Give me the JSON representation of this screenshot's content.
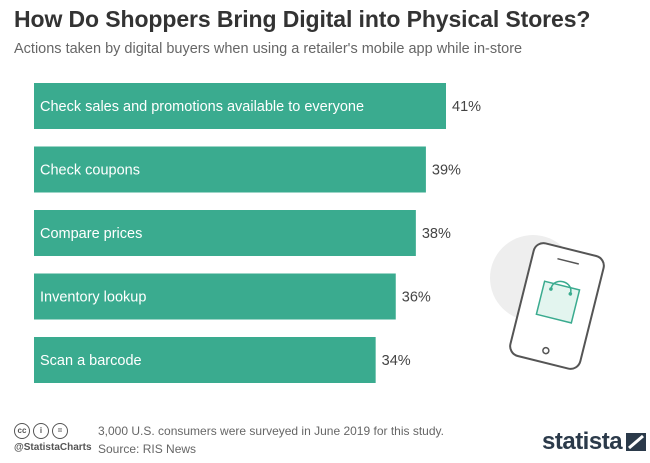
{
  "header": {
    "title": "How Do Shoppers Bring Digital into Physical Stores?",
    "subtitle": "Actions taken by digital buyers when using a retailer's mobile app while in-store"
  },
  "chart_data": {
    "type": "bar",
    "orientation": "horizontal",
    "categories": [
      "Check sales and promotions available to everyone",
      "Check coupons",
      "Compare prices",
      "Inventory lookup",
      "Scan a barcode"
    ],
    "values": [
      41,
      39,
      38,
      36,
      34
    ],
    "value_labels": [
      "41%",
      "39%",
      "38%",
      "36%",
      "34%"
    ],
    "unit": "%",
    "xlim": [
      0,
      41
    ],
    "grid": false,
    "legend": "none",
    "bar_color": "#3aab8f"
  },
  "illustration": {
    "icon": "smartphone-shopping-bag-icon"
  },
  "footer": {
    "license_icons": [
      "cc-icon",
      "by-icon",
      "equals-icon"
    ],
    "license_glyphs": [
      "cc",
      "i",
      "="
    ],
    "handle": "@StatistaCharts",
    "note": "3,000 U.S. consumers were surveyed in June 2019 for this study.",
    "source": "Source: RIS News",
    "brand": "statista"
  },
  "colors": {
    "bar": "#3aab8f",
    "title": "#333333",
    "subtitle": "#666666",
    "brand": "#2b3a4a"
  }
}
